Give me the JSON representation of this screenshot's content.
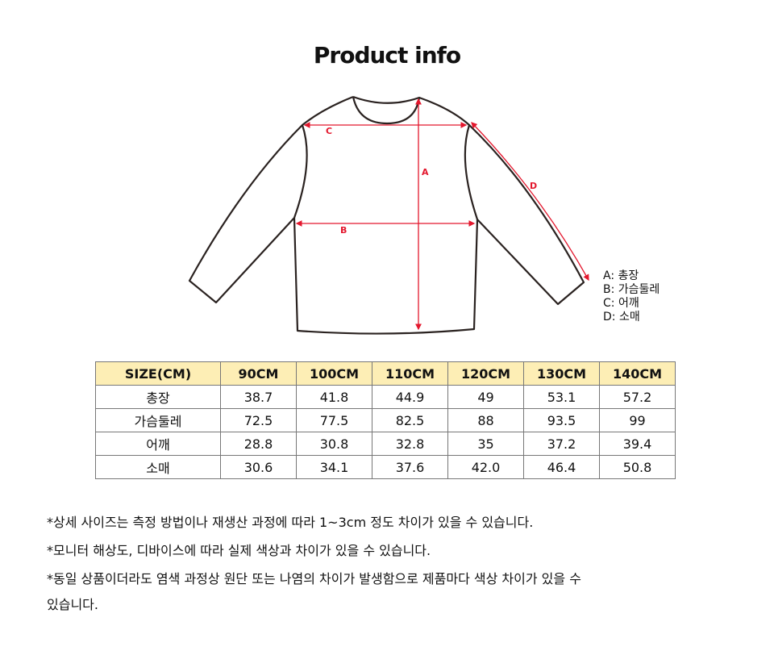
{
  "title": "Product info",
  "diagram": {
    "labels": [
      "A",
      "B",
      "C",
      "D"
    ],
    "measure_color": "#e3172d",
    "legend": [
      "A: 총장",
      "B: 가슴둘레",
      "C: 어깨",
      "D: 소매"
    ]
  },
  "table": {
    "headers": [
      "SIZE(CM)",
      "90CM",
      "100CM",
      "110CM",
      "120CM",
      "130CM",
      "140CM"
    ],
    "header_bg": "#fdeeb5",
    "rows": [
      [
        "총장",
        "38.7",
        "41.8",
        "44.9",
        "49",
        "53.1",
        "57.2"
      ],
      [
        "가슴둘레",
        "72.5",
        "77.5",
        "82.5",
        "88",
        "93.5",
        "99"
      ],
      [
        "어깨",
        "28.8",
        "30.8",
        "32.8",
        "35",
        "37.2",
        "39.4"
      ],
      [
        "소매",
        "30.6",
        "34.1",
        "37.6",
        "42.0",
        "46.4",
        "50.8"
      ]
    ]
  },
  "notes": [
    "*상세 사이즈는 측정 방법이나 재생산 과정에 따라 1~3cm 정도 차이가 있을 수 있습니다.",
    "*모니터 해상도, 디바이스에 따라 실제 색상과 차이가 있을 수 있습니다.",
    "*동일 상품이더라도 염색 과정상 원단 또는 나염의 차이가 발생함으로 제품마다 색상 차이가 있을 수",
    "있습니다."
  ]
}
